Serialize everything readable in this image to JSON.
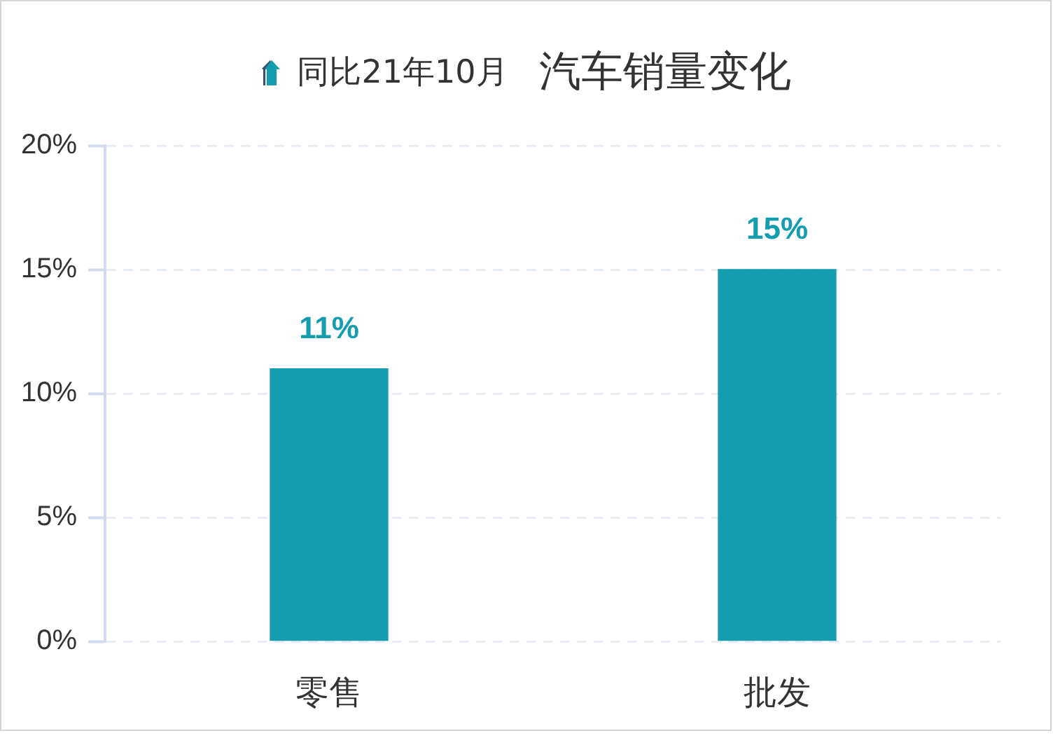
{
  "chart_data": {
    "type": "bar",
    "title": "汽车销量变化",
    "categories": [
      "零售",
      "批发"
    ],
    "series": [
      {
        "name": "同比21年10月",
        "color": "#149daf",
        "values": [
          11,
          15
        ],
        "value_labels": [
          "11%",
          "15%"
        ]
      }
    ],
    "ylim": [
      0,
      20
    ],
    "yticks": [
      {
        "value": 0,
        "label": "0%"
      },
      {
        "value": 5,
        "label": "5%"
      },
      {
        "value": 10,
        "label": "10%"
      },
      {
        "value": 15,
        "label": "15%"
      },
      {
        "value": 20,
        "label": "20%"
      }
    ],
    "grid": "y",
    "legend": "top"
  }
}
